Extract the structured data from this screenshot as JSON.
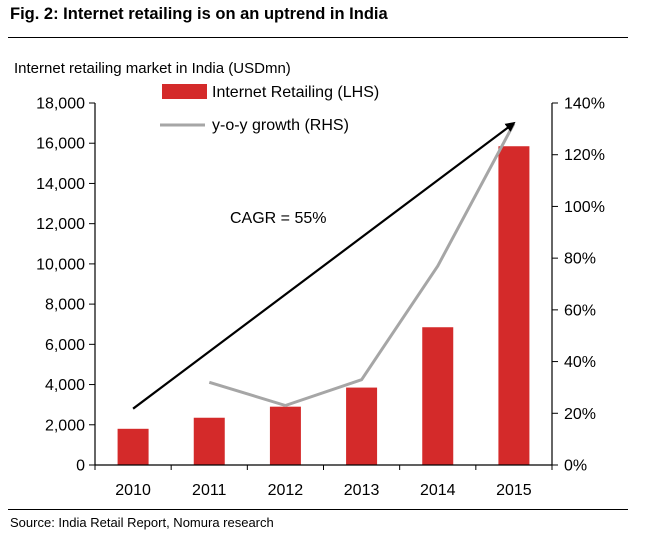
{
  "figure_title": "Fig. 2: Internet retailing is on an uptrend in India",
  "source": "Source: India Retail Report, Nomura research",
  "chart_data": {
    "type": "bar",
    "title": "Internet retailing market in India (USDmn)",
    "categories": [
      "2010",
      "2011",
      "2012",
      "2013",
      "2014",
      "2015"
    ],
    "series": [
      {
        "name": "Internet Retailing (LHS)",
        "type": "bar",
        "axis": "left",
        "color": "#d42a2a",
        "values": [
          1800,
          2350,
          2900,
          3850,
          6850,
          15850
        ]
      },
      {
        "name": "y-o-y growth (RHS)",
        "type": "line",
        "axis": "right",
        "color": "#a6a6a6",
        "values": [
          null,
          32,
          23,
          33,
          77,
          132
        ]
      }
    ],
    "y_left": {
      "range": [
        0,
        18000
      ],
      "ticks": [
        0,
        2000,
        4000,
        6000,
        8000,
        10000,
        12000,
        14000,
        16000,
        18000
      ],
      "tick_labels": [
        "0",
        "2,000",
        "4,000",
        "6,000",
        "8,000",
        "10,000",
        "12,000",
        "14,000",
        "16,000",
        "18,000"
      ]
    },
    "y_right": {
      "range": [
        0,
        140
      ],
      "ticks": [
        0,
        20,
        40,
        60,
        80,
        100,
        120,
        140
      ],
      "tick_labels": [
        "0%",
        "20%",
        "40%",
        "60%",
        "80%",
        "100%",
        "120%",
        "140%"
      ]
    },
    "grid": false,
    "legend_position": "top-center",
    "annotations": [
      {
        "text": "CAGR = 55%",
        "type": "trend-arrow",
        "from": {
          "x": "2010",
          "y": 2800
        },
        "to": {
          "x": "2015",
          "y": 17000
        }
      }
    ]
  }
}
